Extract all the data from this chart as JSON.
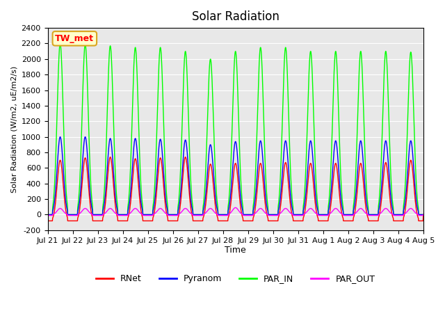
{
  "title": "Solar Radiation",
  "ylabel": "Solar Radiation (W/m2, uE/m2/s)",
  "xlabel": "Time",
  "ylim": [
    -200,
    2400
  ],
  "yticks": [
    -200,
    0,
    200,
    400,
    600,
    800,
    1000,
    1200,
    1400,
    1600,
    1800,
    2000,
    2200,
    2400
  ],
  "xtick_labels": [
    "Jul 21",
    "Jul 22",
    "Jul 23",
    "Jul 24",
    "Jul 25",
    "Jul 26",
    "Jul 27",
    "Jul 28",
    "Jul 29",
    "Jul 30",
    "Jul 31",
    "Aug 1",
    "Aug 2",
    "Aug 3",
    "Aug 4",
    "Aug 5"
  ],
  "station_label": "TW_met",
  "legend_entries": [
    "RNet",
    "Pyranom",
    "PAR_IN",
    "PAR_OUT"
  ],
  "line_colors": [
    "red",
    "blue",
    "lime",
    "magenta"
  ],
  "background_color": "#e8e8e8",
  "grid_color": "white",
  "n_days": 15,
  "rnet_peaks": [
    700,
    730,
    740,
    720,
    730,
    740,
    650,
    660,
    660,
    670,
    660,
    660,
    660,
    670,
    700
  ],
  "pyranom_peaks": [
    1000,
    1000,
    980,
    980,
    970,
    960,
    900,
    940,
    950,
    950,
    950,
    950,
    950,
    950,
    950
  ],
  "par_in_peaks": [
    2200,
    2190,
    2170,
    2150,
    2150,
    2100,
    2000,
    2100,
    2150,
    2150,
    2100,
    2100,
    2100,
    2100,
    2090
  ],
  "par_out_peaks": [
    80,
    80,
    80,
    80,
    80,
    80,
    80,
    90,
    80,
    80,
    80,
    80,
    80,
    80,
    80
  ],
  "rnet_night": -80,
  "pyranom_night": 0,
  "par_in_night": 0,
  "par_out_night": -10
}
